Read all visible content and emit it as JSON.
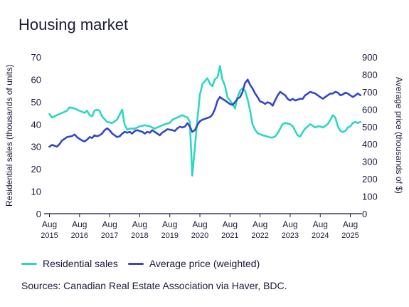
{
  "title": "Housing market",
  "source": "Sources: Canadian Real Estate Association via Haver, BDC.",
  "colors": {
    "sales": "#2ed6c4",
    "price": "#3347c9",
    "axis": "#1b1b3a"
  },
  "chart_data": {
    "type": "line",
    "title": "Housing market",
    "ylabel_left": "Residential sales (thousands of units)",
    "ylabel_right": "Average price (thousands of $)",
    "ylim_left": [
      0,
      70
    ],
    "ylim_right": [
      0,
      900
    ],
    "yticks_left": [
      "0",
      "10",
      "20",
      "30",
      "40",
      "50",
      "60",
      "70"
    ],
    "yticks_right": [
      "0",
      "100",
      "200",
      "300",
      "400",
      "500",
      "600",
      "700",
      "800",
      "900"
    ],
    "xlim": [
      2015.5,
      2025.83
    ],
    "xticks": [
      {
        "x": 2015.583,
        "month": "Aug",
        "year": "2015"
      },
      {
        "x": 2016.583,
        "month": "Aug",
        "year": "2016"
      },
      {
        "x": 2017.583,
        "month": "Aug",
        "year": "2017"
      },
      {
        "x": 2018.583,
        "month": "Aug",
        "year": "2018"
      },
      {
        "x": 2019.583,
        "month": "Aug",
        "year": "2019"
      },
      {
        "x": 2020.583,
        "month": "Aug",
        "year": "2020"
      },
      {
        "x": 2021.583,
        "month": "Aug",
        "year": "2021"
      },
      {
        "x": 2022.583,
        "month": "Aug",
        "year": "2022"
      },
      {
        "x": 2023.583,
        "month": "Aug",
        "year": "2023"
      },
      {
        "x": 2024.583,
        "month": "Aug",
        "year": "2024"
      },
      {
        "x": 2025.583,
        "month": "Aug",
        "year": "2025"
      }
    ],
    "grid": false,
    "legend_position": "bottom-left",
    "series": [
      {
        "name": "Residential sales",
        "axis": "left",
        "points": [
          [
            2015.58,
            44.5
          ],
          [
            2015.67,
            43
          ],
          [
            2015.83,
            44
          ],
          [
            2016.0,
            45
          ],
          [
            2016.17,
            46
          ],
          [
            2016.25,
            47.5
          ],
          [
            2016.42,
            47
          ],
          [
            2016.58,
            46
          ],
          [
            2016.75,
            45
          ],
          [
            2016.83,
            46
          ],
          [
            2016.92,
            44
          ],
          [
            2017.0,
            43.5
          ],
          [
            2017.08,
            46
          ],
          [
            2017.17,
            46.5
          ],
          [
            2017.25,
            46
          ],
          [
            2017.33,
            43.5
          ],
          [
            2017.5,
            41
          ],
          [
            2017.67,
            40.5
          ],
          [
            2017.83,
            42
          ],
          [
            2018.0,
            46.5
          ],
          [
            2018.08,
            40
          ],
          [
            2018.17,
            37.5
          ],
          [
            2018.25,
            38
          ],
          [
            2018.42,
            38
          ],
          [
            2018.58,
            39
          ],
          [
            2018.75,
            39.5
          ],
          [
            2018.92,
            39
          ],
          [
            2019.08,
            38
          ],
          [
            2019.25,
            39
          ],
          [
            2019.42,
            40
          ],
          [
            2019.58,
            40.5
          ],
          [
            2019.67,
            42
          ],
          [
            2019.83,
            43
          ],
          [
            2020.0,
            44
          ],
          [
            2020.08,
            43.5
          ],
          [
            2020.17,
            43
          ],
          [
            2020.25,
            41
          ],
          [
            2020.33,
            17
          ],
          [
            2020.42,
            30
          ],
          [
            2020.5,
            42
          ],
          [
            2020.58,
            53
          ],
          [
            2020.67,
            58
          ],
          [
            2020.83,
            60.5
          ],
          [
            2020.92,
            58
          ],
          [
            2021.0,
            57
          ],
          [
            2021.08,
            60
          ],
          [
            2021.17,
            61
          ],
          [
            2021.25,
            66
          ],
          [
            2021.33,
            60
          ],
          [
            2021.42,
            57
          ],
          [
            2021.5,
            52
          ],
          [
            2021.67,
            49
          ],
          [
            2021.75,
            47
          ],
          [
            2021.83,
            52
          ],
          [
            2021.92,
            55
          ],
          [
            2022.0,
            56
          ],
          [
            2022.08,
            55
          ],
          [
            2022.17,
            51
          ],
          [
            2022.25,
            46
          ],
          [
            2022.33,
            40
          ],
          [
            2022.42,
            37.5
          ],
          [
            2022.5,
            36
          ],
          [
            2022.67,
            35
          ],
          [
            2022.83,
            34.5
          ],
          [
            2022.92,
            34
          ],
          [
            2023.0,
            34
          ],
          [
            2023.08,
            34.5
          ],
          [
            2023.17,
            36
          ],
          [
            2023.25,
            38
          ],
          [
            2023.33,
            40
          ],
          [
            2023.42,
            40.5
          ],
          [
            2023.58,
            40
          ],
          [
            2023.67,
            39
          ],
          [
            2023.75,
            37
          ],
          [
            2023.83,
            35
          ],
          [
            2023.92,
            34.5
          ],
          [
            2024.0,
            36.5
          ],
          [
            2024.08,
            38
          ],
          [
            2024.25,
            40
          ],
          [
            2024.42,
            38.5
          ],
          [
            2024.5,
            39
          ],
          [
            2024.58,
            39
          ],
          [
            2024.67,
            38.5
          ],
          [
            2024.83,
            40
          ],
          [
            2024.92,
            42
          ],
          [
            2025.0,
            44
          ],
          [
            2025.08,
            43
          ],
          [
            2025.17,
            39
          ],
          [
            2025.25,
            37
          ],
          [
            2025.33,
            36.5
          ],
          [
            2025.42,
            37
          ],
          [
            2025.5,
            38.5
          ],
          [
            2025.58,
            39
          ],
          [
            2025.67,
            40.5
          ],
          [
            2025.75,
            41
          ],
          [
            2025.83,
            40.5
          ],
          [
            2025.92,
            41
          ]
        ]
      },
      {
        "name": "Average price (weighted)",
        "axis": "right",
        "points": [
          [
            2015.58,
            385
          ],
          [
            2015.67,
            395
          ],
          [
            2015.75,
            390
          ],
          [
            2015.83,
            385
          ],
          [
            2015.92,
            400
          ],
          [
            2016.0,
            420
          ],
          [
            2016.17,
            440
          ],
          [
            2016.33,
            445
          ],
          [
            2016.42,
            455
          ],
          [
            2016.5,
            440
          ],
          [
            2016.58,
            430
          ],
          [
            2016.67,
            420
          ],
          [
            2016.75,
            415
          ],
          [
            2016.83,
            425
          ],
          [
            2016.92,
            440
          ],
          [
            2017.0,
            435
          ],
          [
            2017.08,
            450
          ],
          [
            2017.17,
            445
          ],
          [
            2017.25,
            450
          ],
          [
            2017.33,
            460
          ],
          [
            2017.42,
            480
          ],
          [
            2017.5,
            490
          ],
          [
            2017.58,
            480
          ],
          [
            2017.67,
            460
          ],
          [
            2017.75,
            450
          ],
          [
            2017.83,
            440
          ],
          [
            2017.92,
            445
          ],
          [
            2018.0,
            460
          ],
          [
            2018.08,
            470
          ],
          [
            2018.17,
            465
          ],
          [
            2018.25,
            470
          ],
          [
            2018.33,
            460
          ],
          [
            2018.42,
            475
          ],
          [
            2018.5,
            480
          ],
          [
            2018.58,
            475
          ],
          [
            2018.67,
            470
          ],
          [
            2018.75,
            460
          ],
          [
            2018.83,
            470
          ],
          [
            2018.92,
            465
          ],
          [
            2019.0,
            480
          ],
          [
            2019.08,
            470
          ],
          [
            2019.17,
            460
          ],
          [
            2019.25,
            450
          ],
          [
            2019.33,
            465
          ],
          [
            2019.42,
            475
          ],
          [
            2019.5,
            485
          ],
          [
            2019.67,
            480
          ],
          [
            2019.75,
            475
          ],
          [
            2019.83,
            490
          ],
          [
            2019.92,
            500
          ],
          [
            2020.0,
            495
          ],
          [
            2020.08,
            500
          ],
          [
            2020.17,
            520
          ],
          [
            2020.25,
            500
          ],
          [
            2020.33,
            470
          ],
          [
            2020.42,
            480
          ],
          [
            2020.5,
            510
          ],
          [
            2020.58,
            530
          ],
          [
            2020.67,
            540
          ],
          [
            2020.75,
            545
          ],
          [
            2020.83,
            550
          ],
          [
            2020.92,
            555
          ],
          [
            2021.0,
            570
          ],
          [
            2021.08,
            600
          ],
          [
            2021.17,
            650
          ],
          [
            2021.25,
            670
          ],
          [
            2021.33,
            660
          ],
          [
            2021.42,
            650
          ],
          [
            2021.5,
            640
          ],
          [
            2021.58,
            630
          ],
          [
            2021.67,
            625
          ],
          [
            2021.75,
            640
          ],
          [
            2021.83,
            660
          ],
          [
            2021.92,
            670
          ],
          [
            2022.0,
            700
          ],
          [
            2022.08,
            750
          ],
          [
            2022.17,
            770
          ],
          [
            2022.25,
            740
          ],
          [
            2022.33,
            720
          ],
          [
            2022.42,
            690
          ],
          [
            2022.5,
            670
          ],
          [
            2022.58,
            645
          ],
          [
            2022.67,
            640
          ],
          [
            2022.75,
            630
          ],
          [
            2022.83,
            640
          ],
          [
            2022.92,
            635
          ],
          [
            2023.0,
            620
          ],
          [
            2023.08,
            650
          ],
          [
            2023.17,
            680
          ],
          [
            2023.25,
            700
          ],
          [
            2023.33,
            690
          ],
          [
            2023.42,
            680
          ],
          [
            2023.5,
            660
          ],
          [
            2023.58,
            650
          ],
          [
            2023.67,
            660
          ],
          [
            2023.75,
            650
          ],
          [
            2023.83,
            655
          ],
          [
            2023.92,
            660
          ],
          [
            2024.0,
            660
          ],
          [
            2024.08,
            680
          ],
          [
            2024.17,
            690
          ],
          [
            2024.25,
            700
          ],
          [
            2024.33,
            695
          ],
          [
            2024.42,
            690
          ],
          [
            2024.5,
            680
          ],
          [
            2024.58,
            670
          ],
          [
            2024.67,
            660
          ],
          [
            2024.75,
            670
          ],
          [
            2024.83,
            680
          ],
          [
            2024.92,
            690
          ],
          [
            2025.0,
            690
          ],
          [
            2025.08,
            700
          ],
          [
            2025.17,
            695
          ],
          [
            2025.25,
            680
          ],
          [
            2025.33,
            685
          ],
          [
            2025.42,
            695
          ],
          [
            2025.5,
            690
          ],
          [
            2025.58,
            680
          ],
          [
            2025.67,
            670
          ],
          [
            2025.75,
            680
          ],
          [
            2025.83,
            690
          ],
          [
            2025.92,
            680
          ]
        ]
      }
    ]
  }
}
